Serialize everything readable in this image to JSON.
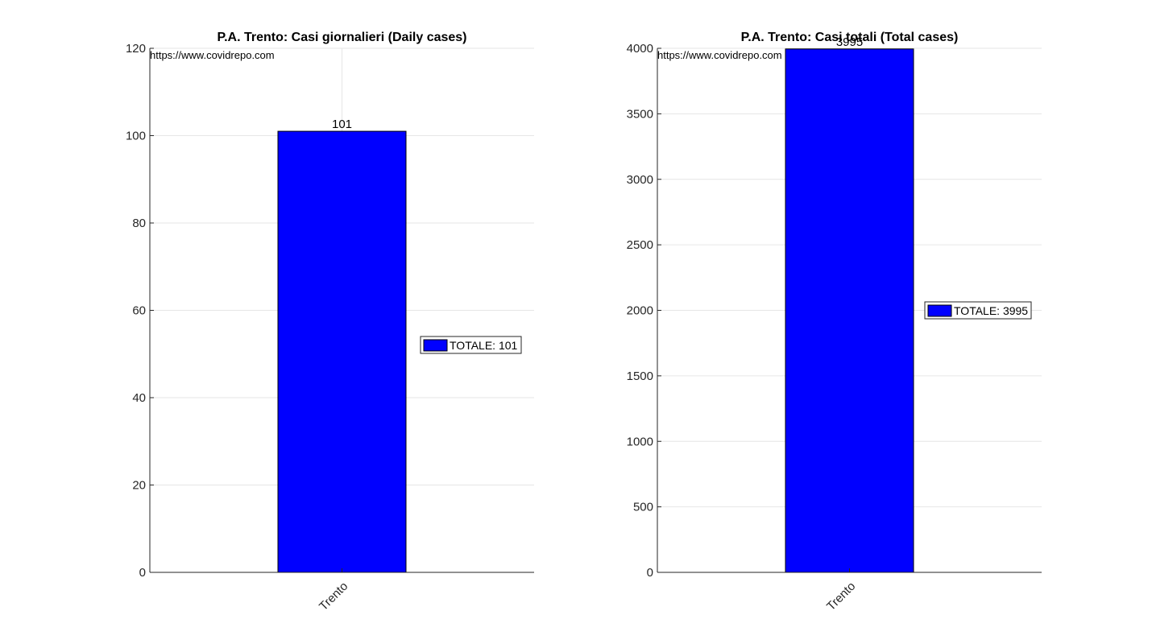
{
  "chart_data": [
    {
      "type": "bar",
      "title": "P.A. Trento: Casi giornalieri (Daily cases)",
      "categories": [
        "Trento"
      ],
      "series": [
        {
          "name": "TOTALE: 101",
          "values": [
            101
          ]
        }
      ],
      "data_labels": [
        "101"
      ],
      "ylim": [
        0,
        120
      ],
      "yticks": [
        0,
        20,
        40,
        60,
        80,
        100,
        120
      ],
      "ytick_labels": [
        "0",
        "20",
        "40",
        "60",
        "80",
        "100",
        "120"
      ],
      "watermark": "https://www.covidrepo.com",
      "grid": true,
      "legend_placement": "right",
      "bar_color": "#0000ff"
    },
    {
      "type": "bar",
      "title": "P.A. Trento: Casi totali (Total cases)",
      "categories": [
        "Trento"
      ],
      "series": [
        {
          "name": "TOTALE: 3995",
          "values": [
            3995
          ]
        }
      ],
      "data_labels": [
        "3995"
      ],
      "ylim": [
        0,
        4000
      ],
      "yticks": [
        0,
        500,
        1000,
        1500,
        2000,
        2500,
        3000,
        3500,
        4000
      ],
      "ytick_labels": [
        "0",
        "500",
        "1000",
        "1500",
        "2000",
        "2500",
        "3000",
        "3500",
        "4000"
      ],
      "watermark": "https://www.covidrepo.com",
      "grid": true,
      "legend_placement": "right",
      "bar_color": "#0000ff"
    }
  ]
}
